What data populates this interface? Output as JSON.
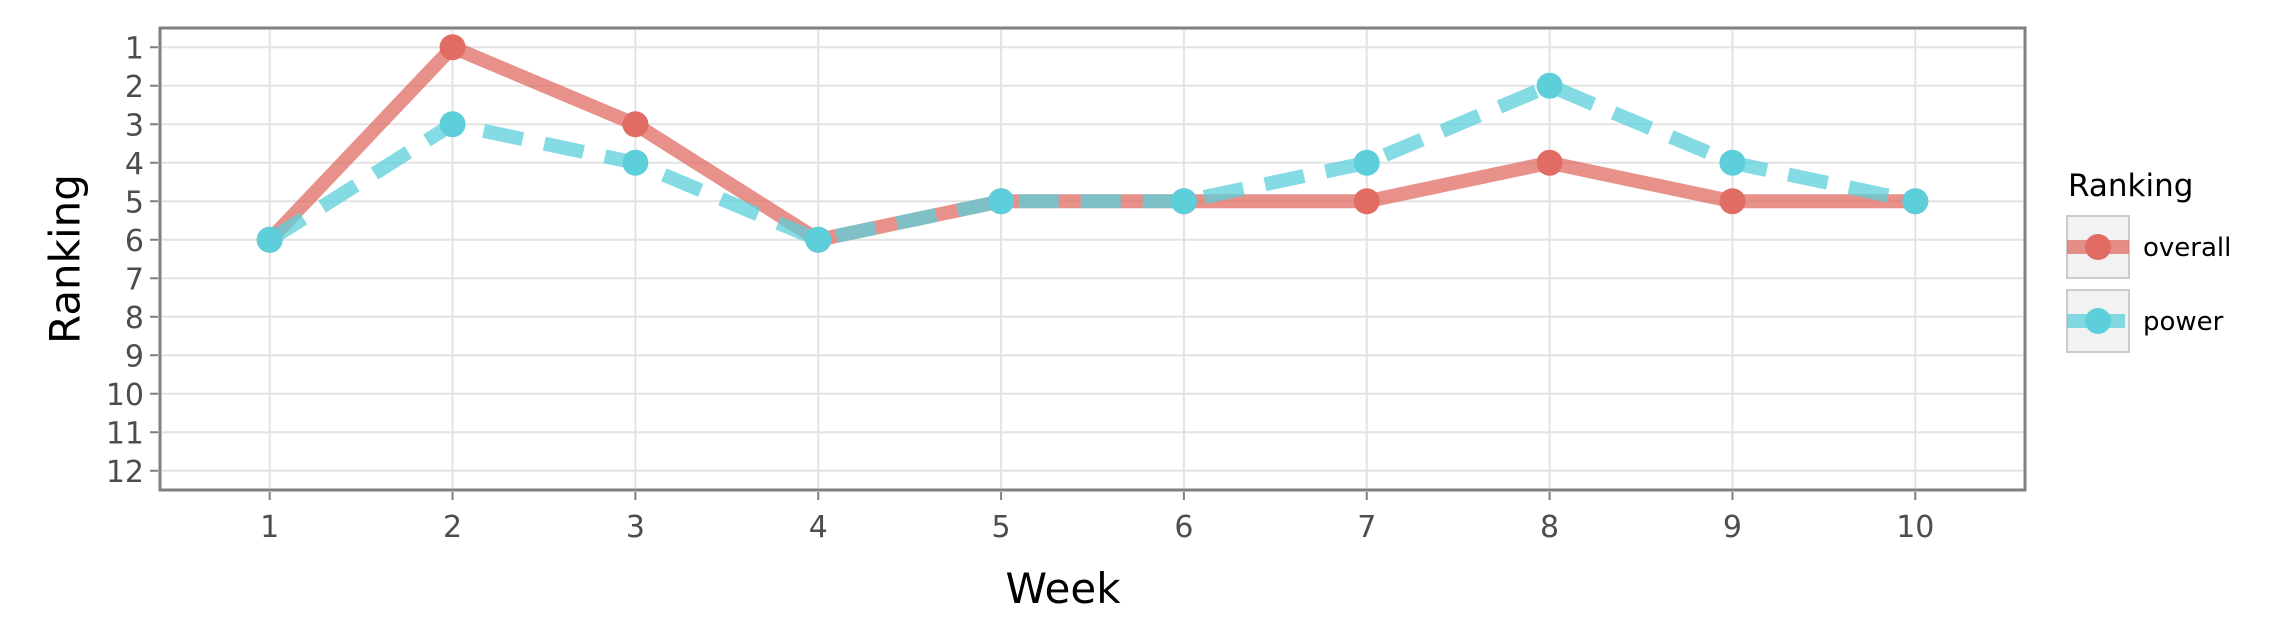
{
  "chart_data": {
    "type": "line",
    "xlabel": "Week",
    "ylabel": "Ranking",
    "x": [
      1,
      2,
      3,
      4,
      5,
      6,
      7,
      8,
      9,
      10
    ],
    "x_ticks": [
      "1",
      "2",
      "3",
      "4",
      "5",
      "6",
      "7",
      "8",
      "9",
      "10"
    ],
    "y_ticks": [
      "1",
      "2",
      "3",
      "4",
      "5",
      "6",
      "7",
      "8",
      "9",
      "10",
      "11",
      "12"
    ],
    "xlim": [
      0.4,
      10.6
    ],
    "ylim": [
      12.5,
      0.5
    ],
    "y_reversed": true,
    "grid": true,
    "legend": {
      "title": "Ranking",
      "position": "right"
    },
    "series": [
      {
        "name": "overall",
        "color": "#E06C64",
        "line_style": "solid",
        "values": [
          6,
          1,
          3,
          6,
          5,
          5,
          5,
          4,
          5,
          5
        ]
      },
      {
        "name": "power",
        "color": "#5CCFDA",
        "line_style": "dashed",
        "values": [
          6,
          3,
          4,
          6,
          5,
          5,
          4,
          2,
          4,
          5
        ]
      }
    ]
  }
}
